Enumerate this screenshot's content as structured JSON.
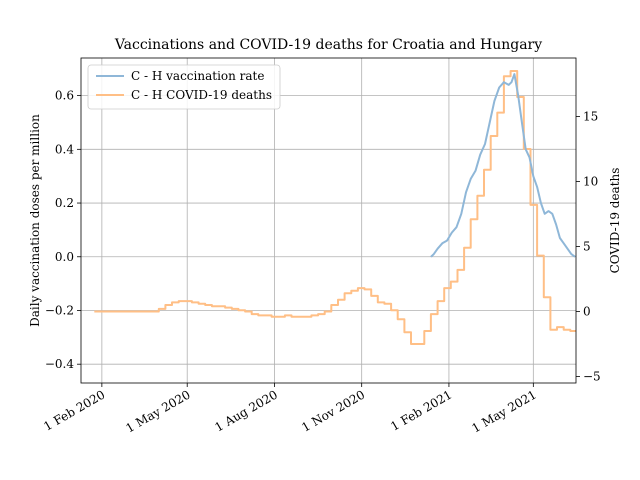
{
  "chart_data": {
    "type": "line",
    "title": "Vaccinations and COVID-19 deaths for Croatia and Hungary",
    "x_axis": {
      "type": "date",
      "range": [
        "2020-01-10",
        "2021-06-15"
      ],
      "ticks": [
        {
          "value": "2020-02-01",
          "label": "1 Feb 2020"
        },
        {
          "value": "2020-05-01",
          "label": "1 May 2020"
        },
        {
          "value": "2020-08-01",
          "label": "1 Aug 2020"
        },
        {
          "value": "2020-11-01",
          "label": "1 Nov 2020"
        },
        {
          "value": "2021-02-01",
          "label": "1 Feb 2021"
        },
        {
          "value": "2021-05-01",
          "label": "1 May 2021"
        }
      ]
    },
    "y_left": {
      "label": "Daily vaccination doses per million",
      "ylim": [
        -0.47,
        0.74
      ],
      "ticks": [
        -0.4,
        -0.2,
        0.0,
        0.2,
        0.4,
        0.6
      ],
      "tick_labels": [
        "−0.4",
        "−0.2",
        "0.0",
        "0.2",
        "0.4",
        "0.6"
      ]
    },
    "y_right": {
      "label": "COVID-19 deaths",
      "ylim": [
        -5.5,
        19.5
      ],
      "ticks": [
        -5,
        0,
        5,
        10,
        15
      ],
      "tick_labels": [
        "−5",
        "0",
        "5",
        "10",
        "15"
      ]
    },
    "grid": true,
    "legend": {
      "placement": "top-left"
    },
    "series": [
      {
        "name": "C - H vaccination rate",
        "axis": "left",
        "color": "#8fb7d8",
        "step": false,
        "x": [
          "2021-01-13",
          "2021-01-16",
          "2021-01-20",
          "2021-01-25",
          "2021-01-30",
          "2021-02-04",
          "2021-02-09",
          "2021-02-14",
          "2021-02-19",
          "2021-02-24",
          "2021-03-01",
          "2021-03-06",
          "2021-03-11",
          "2021-03-16",
          "2021-03-21",
          "2021-03-26",
          "2021-03-31",
          "2021-04-05",
          "2021-04-08",
          "2021-04-11",
          "2021-04-15",
          "2021-04-19",
          "2021-04-23",
          "2021-04-27",
          "2021-05-01",
          "2021-05-05",
          "2021-05-09",
          "2021-05-13",
          "2021-05-17",
          "2021-05-21",
          "2021-05-25",
          "2021-05-29",
          "2021-06-02",
          "2021-06-06",
          "2021-06-10",
          "2021-06-14"
        ],
        "y": [
          0.0,
          0.01,
          0.03,
          0.05,
          0.06,
          0.09,
          0.11,
          0.16,
          0.24,
          0.29,
          0.32,
          0.38,
          0.42,
          0.5,
          0.58,
          0.63,
          0.65,
          0.64,
          0.65,
          0.68,
          0.6,
          0.5,
          0.4,
          0.37,
          0.3,
          0.26,
          0.2,
          0.16,
          0.17,
          0.16,
          0.12,
          0.07,
          0.05,
          0.03,
          0.01,
          0.0
        ]
      },
      {
        "name": "C - H COVID-19 deaths",
        "axis": "right",
        "color": "#ffbf86",
        "step": true,
        "x": [
          "2020-01-24",
          "2020-04-01",
          "2020-04-08",
          "2020-04-15",
          "2020-04-22",
          "2020-04-29",
          "2020-05-06",
          "2020-05-13",
          "2020-05-20",
          "2020-05-27",
          "2020-06-03",
          "2020-06-10",
          "2020-06-17",
          "2020-06-24",
          "2020-07-01",
          "2020-07-08",
          "2020-07-15",
          "2020-07-22",
          "2020-07-29",
          "2020-08-05",
          "2020-08-12",
          "2020-08-19",
          "2020-08-26",
          "2020-09-02",
          "2020-09-09",
          "2020-09-16",
          "2020-09-23",
          "2020-09-30",
          "2020-10-07",
          "2020-10-14",
          "2020-10-21",
          "2020-10-28",
          "2020-11-04",
          "2020-11-11",
          "2020-11-18",
          "2020-11-25",
          "2020-12-02",
          "2020-12-09",
          "2020-12-16",
          "2020-12-23",
          "2020-12-30",
          "2021-01-06",
          "2021-01-13",
          "2021-01-20",
          "2021-01-27",
          "2021-02-03",
          "2021-02-10",
          "2021-02-17",
          "2021-02-24",
          "2021-03-03",
          "2021-03-10",
          "2021-03-17",
          "2021-03-24",
          "2021-03-31",
          "2021-04-07",
          "2021-04-14",
          "2021-04-21",
          "2021-04-28",
          "2021-05-05",
          "2021-05-12",
          "2021-05-19",
          "2021-05-26",
          "2021-06-02",
          "2021-06-09",
          "2021-06-15"
        ],
        "y": [
          0,
          0.2,
          0.5,
          0.7,
          0.8,
          0.8,
          0.7,
          0.6,
          0.5,
          0.4,
          0.4,
          0.3,
          0.2,
          0.1,
          0.0,
          -0.2,
          -0.3,
          -0.3,
          -0.4,
          -0.4,
          -0.3,
          -0.4,
          -0.4,
          -0.4,
          -0.3,
          -0.2,
          0.0,
          0.5,
          0.9,
          1.4,
          1.6,
          1.8,
          1.7,
          1.2,
          0.7,
          0.6,
          0.1,
          -0.6,
          -1.6,
          -2.5,
          -2.5,
          -1.5,
          -0.2,
          0.8,
          1.8,
          2.3,
          3.2,
          4.9,
          7.1,
          8.9,
          10.9,
          13.5,
          15.3,
          18.1,
          18.5,
          16.5,
          12.5,
          8.2,
          4.3,
          1.1,
          -1.4,
          -1.2,
          -1.4,
          -1.5,
          -1.5
        ]
      }
    ]
  }
}
